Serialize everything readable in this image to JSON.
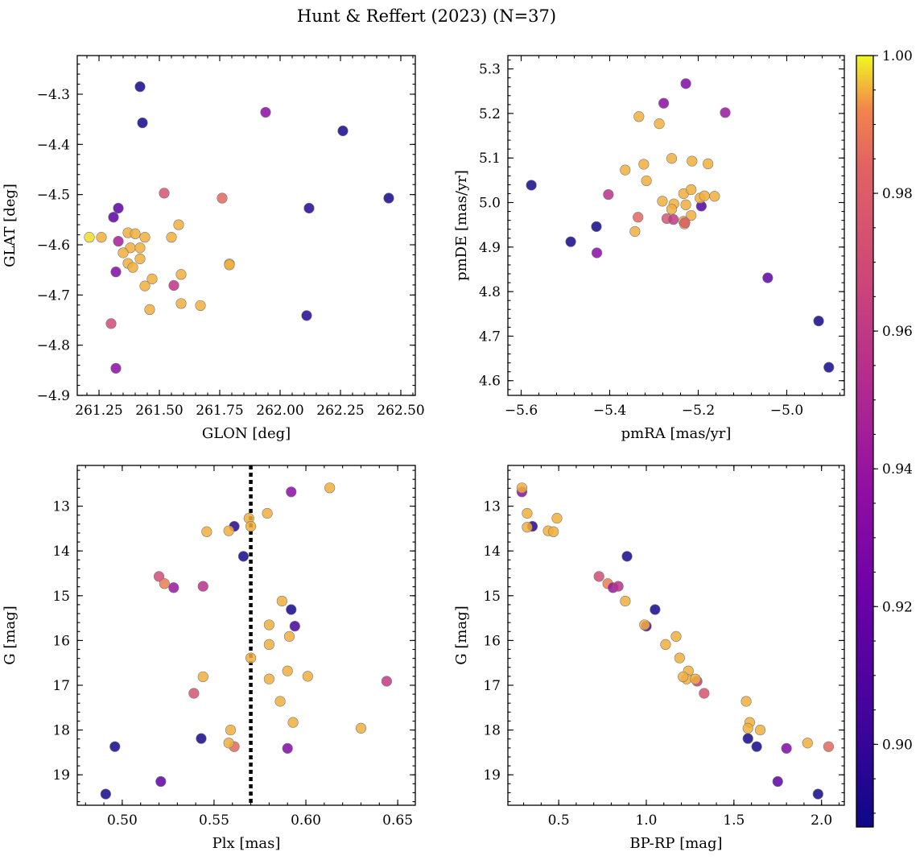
{
  "figure_title": "Hunt & Reffert (2023) (N=37)",
  "colorbar": {
    "ticks": [
      "1.00",
      "0.98",
      "0.96",
      "0.94",
      "0.92",
      "0.90"
    ],
    "range": [
      0.888,
      1.0
    ],
    "colormap": "plasma"
  },
  "chart_data": [
    {
      "type": "scatter",
      "id": "panel-glon-glat",
      "xlabel": "GLON [deg]",
      "ylabel": "GLAT [deg]",
      "xlim": [
        261.16,
        262.56
      ],
      "ylim": [
        -4.9,
        -4.223
      ],
      "y_inverted": false,
      "xticks": [
        261.25,
        261.5,
        261.75,
        262.0,
        262.25,
        262.5
      ],
      "xtick_labels": [
        "261.25",
        "261.50",
        "261.75",
        "262.00",
        "262.25",
        "262.50"
      ],
      "yticks": [
        -4.3,
        -4.4,
        -4.5,
        -4.6,
        -4.7,
        -4.8,
        -4.9
      ],
      "ytick_labels": [
        "−4.3",
        "−4.4",
        "−4.5",
        "−4.6",
        "−4.7",
        "−4.8",
        "−4.9"
      ],
      "points": [
        [
          261.42,
          -4.285,
          0.89
        ],
        [
          261.43,
          -4.357,
          0.89
        ],
        [
          262.26,
          -4.373,
          0.89
        ],
        [
          262.45,
          -4.507,
          0.89
        ],
        [
          262.12,
          -4.527,
          0.895
        ],
        [
          262.11,
          -4.741,
          0.895
        ],
        [
          261.94,
          -4.336,
          0.935
        ],
        [
          261.52,
          -4.497,
          0.975
        ],
        [
          261.76,
          -4.507,
          0.985
        ],
        [
          261.33,
          -4.527,
          0.915
        ],
        [
          261.31,
          -4.545,
          0.915
        ],
        [
          261.33,
          -4.593,
          0.945
        ],
        [
          261.32,
          -4.654,
          0.93
        ],
        [
          261.3,
          -4.757,
          0.97
        ],
        [
          261.32,
          -4.846,
          0.935
        ],
        [
          261.26,
          -4.585,
          0.995
        ],
        [
          261.37,
          -4.576,
          0.995
        ],
        [
          261.4,
          -4.578,
          0.995
        ],
        [
          261.38,
          -4.606,
          0.995
        ],
        [
          261.42,
          -4.606,
          0.995
        ],
        [
          261.35,
          -4.616,
          0.995
        ],
        [
          261.44,
          -4.585,
          0.995
        ],
        [
          261.42,
          -4.628,
          0.995
        ],
        [
          261.37,
          -4.637,
          0.995
        ],
        [
          261.39,
          -4.645,
          0.995
        ],
        [
          261.44,
          -4.682,
          0.995
        ],
        [
          261.47,
          -4.668,
          0.995
        ],
        [
          261.46,
          -4.729,
          0.995
        ],
        [
          261.55,
          -4.585,
          0.995
        ],
        [
          261.58,
          -4.56,
          0.995
        ],
        [
          261.59,
          -4.659,
          0.995
        ],
        [
          261.59,
          -4.717,
          0.995
        ],
        [
          261.67,
          -4.721,
          0.995
        ],
        [
          261.79,
          -4.638,
          0.995
        ],
        [
          261.79,
          -4.64,
          0.995
        ],
        [
          261.56,
          -4.681,
          0.958
        ],
        [
          261.21,
          -4.585,
          0.998
        ]
      ]
    },
    {
      "type": "scatter",
      "id": "panel-pm",
      "xlabel": "pmRA [mas/yr]",
      "ylabel": "pmDE [mas/yr]",
      "xlim": [
        -5.63,
        -4.87
      ],
      "ylim": [
        4.567,
        5.33
      ],
      "y_inverted": false,
      "xticks": [
        -5.6,
        -5.4,
        -5.2,
        -5.0
      ],
      "xtick_labels": [
        "−5.6",
        "−5.4",
        "−5.2",
        "−5.0"
      ],
      "yticks": [
        4.6,
        4.7,
        4.8,
        4.9,
        5.0,
        5.1,
        5.2,
        5.3
      ],
      "ytick_labels": [
        "4.6",
        "4.7",
        "4.8",
        "4.9",
        "5.0",
        "5.1",
        "5.2",
        "5.3"
      ],
      "points": [
        [
          -5.577,
          5.039,
          0.89
        ],
        [
          -5.488,
          4.912,
          0.89
        ],
        [
          -5.43,
          4.946,
          0.89
        ],
        [
          -4.928,
          4.734,
          0.89
        ],
        [
          -4.905,
          4.63,
          0.89
        ],
        [
          -5.228,
          5.267,
          0.93
        ],
        [
          -5.278,
          5.223,
          0.935
        ],
        [
          -5.139,
          5.202,
          0.94
        ],
        [
          -5.403,
          5.018,
          0.955
        ],
        [
          -5.429,
          4.887,
          0.935
        ],
        [
          -5.043,
          4.831,
          0.915
        ],
        [
          -5.193,
          4.992,
          0.91
        ],
        [
          -5.334,
          5.193,
          0.995
        ],
        [
          -5.288,
          5.177,
          0.995
        ],
        [
          -5.365,
          5.073,
          0.995
        ],
        [
          -5.323,
          5.086,
          0.995
        ],
        [
          -5.317,
          5.049,
          0.995
        ],
        [
          -5.26,
          5.099,
          0.995
        ],
        [
          -5.214,
          5.093,
          0.995
        ],
        [
          -5.178,
          5.087,
          0.995
        ],
        [
          -5.281,
          5.003,
          0.995
        ],
        [
          -5.233,
          5.02,
          0.995
        ],
        [
          -5.216,
          5.029,
          0.995
        ],
        [
          -5.196,
          5.01,
          0.995
        ],
        [
          -5.186,
          5.015,
          0.995
        ],
        [
          -5.163,
          5.014,
          0.995
        ],
        [
          -5.255,
          4.997,
          0.995
        ],
        [
          -5.228,
          4.995,
          0.995
        ],
        [
          -5.26,
          4.985,
          0.995
        ],
        [
          -5.216,
          4.971,
          0.995
        ],
        [
          -5.233,
          4.958,
          0.995
        ],
        [
          -5.231,
          4.952,
          0.995
        ],
        [
          -5.271,
          4.964,
          0.975
        ],
        [
          -5.256,
          4.962,
          0.96
        ],
        [
          -5.336,
          4.967,
          0.985
        ],
        [
          -5.343,
          4.935,
          0.995
        ],
        [
          -5.23,
          4.955,
          0.98
        ]
      ]
    },
    {
      "type": "scatter",
      "id": "panel-plx-g",
      "xlabel": "Plx [mas]",
      "ylabel": "G [mag]",
      "xlim": [
        0.4755,
        0.6596
      ],
      "ylim": [
        19.68,
        12.09
      ],
      "y_inverted": true,
      "reference_line_x": 0.57,
      "xticks": [
        0.5,
        0.55,
        0.6,
        0.65
      ],
      "xtick_labels": [
        "0.50",
        "0.55",
        "0.60",
        "0.65"
      ],
      "yticks": [
        13,
        14,
        15,
        16,
        17,
        18,
        19
      ],
      "ytick_labels": [
        "13",
        "14",
        "15",
        "16",
        "17",
        "18",
        "19"
      ],
      "points": [
        [
          0.491,
          19.43,
          0.89
        ],
        [
          0.496,
          18.37,
          0.89
        ],
        [
          0.543,
          18.19,
          0.89
        ],
        [
          0.566,
          14.12,
          0.89
        ],
        [
          0.561,
          13.45,
          0.895
        ],
        [
          0.592,
          15.31,
          0.89
        ],
        [
          0.594,
          15.68,
          0.905
        ],
        [
          0.521,
          19.15,
          0.915
        ],
        [
          0.59,
          18.41,
          0.93
        ],
        [
          0.592,
          12.68,
          0.935
        ],
        [
          0.528,
          14.82,
          0.94
        ],
        [
          0.544,
          14.79,
          0.955
        ],
        [
          0.644,
          16.91,
          0.96
        ],
        [
          0.52,
          14.57,
          0.97
        ],
        [
          0.539,
          17.18,
          0.975
        ],
        [
          0.561,
          18.37,
          0.985
        ],
        [
          0.613,
          12.59,
          0.995
        ],
        [
          0.579,
          13.16,
          0.995
        ],
        [
          0.569,
          13.27,
          0.995
        ],
        [
          0.57,
          13.45,
          0.995
        ],
        [
          0.546,
          13.57,
          0.995
        ],
        [
          0.558,
          13.55,
          0.995
        ],
        [
          0.523,
          14.73,
          0.99
        ],
        [
          0.587,
          15.12,
          0.995
        ],
        [
          0.58,
          15.65,
          0.995
        ],
        [
          0.58,
          16.09,
          0.995
        ],
        [
          0.591,
          15.91,
          0.995
        ],
        [
          0.57,
          16.39,
          0.995
        ],
        [
          0.58,
          16.86,
          0.995
        ],
        [
          0.59,
          16.68,
          0.995
        ],
        [
          0.601,
          16.8,
          0.995
        ],
        [
          0.544,
          16.81,
          0.995
        ],
        [
          0.586,
          17.36,
          0.995
        ],
        [
          0.593,
          17.83,
          0.995
        ],
        [
          0.559,
          18.0,
          0.995
        ],
        [
          0.558,
          18.29,
          0.995
        ],
        [
          0.63,
          17.96,
          0.995
        ]
      ]
    },
    {
      "type": "scatter",
      "id": "panel-cmd",
      "xlabel": "BP-RP [mag]",
      "ylabel": "G [mag]",
      "xlim": [
        0.21,
        2.13
      ],
      "ylim": [
        19.68,
        12.09
      ],
      "y_inverted": true,
      "xticks": [
        0.5,
        1.0,
        1.5,
        2.0
      ],
      "xtick_labels": [
        "0.5",
        "1.0",
        "1.5",
        "2.0"
      ],
      "yticks": [
        13,
        14,
        15,
        16,
        17,
        18,
        19
      ],
      "ytick_labels": [
        "13",
        "14",
        "15",
        "16",
        "17",
        "18",
        "19"
      ],
      "points": [
        [
          0.29,
          12.68,
          0.935
        ],
        [
          0.29,
          12.59,
          0.995
        ],
        [
          0.32,
          13.16,
          0.995
        ],
        [
          0.35,
          13.45,
          0.895
        ],
        [
          0.32,
          13.47,
          0.995
        ],
        [
          0.49,
          13.27,
          0.995
        ],
        [
          0.44,
          13.55,
          0.995
        ],
        [
          0.47,
          13.57,
          0.995
        ],
        [
          0.89,
          14.12,
          0.89
        ],
        [
          0.73,
          14.57,
          0.97
        ],
        [
          0.78,
          14.73,
          0.99
        ],
        [
          0.81,
          14.82,
          0.94
        ],
        [
          0.84,
          14.79,
          0.955
        ],
        [
          0.88,
          15.12,
          0.995
        ],
        [
          1.05,
          15.31,
          0.89
        ],
        [
          1.0,
          15.68,
          0.905
        ],
        [
          0.99,
          15.65,
          0.995
        ],
        [
          1.17,
          15.91,
          0.995
        ],
        [
          1.11,
          16.09,
          0.995
        ],
        [
          1.19,
          16.39,
          0.995
        ],
        [
          1.29,
          16.91,
          0.96
        ],
        [
          1.24,
          16.68,
          0.995
        ],
        [
          1.23,
          16.86,
          0.995
        ],
        [
          1.21,
          16.81,
          0.995
        ],
        [
          1.28,
          16.86,
          0.995
        ],
        [
          1.33,
          17.18,
          0.975
        ],
        [
          1.57,
          17.36,
          0.995
        ],
        [
          1.59,
          17.83,
          0.995
        ],
        [
          1.58,
          17.96,
          0.995
        ],
        [
          1.65,
          18.0,
          0.995
        ],
        [
          1.58,
          18.19,
          0.89
        ],
        [
          1.63,
          18.37,
          0.89
        ],
        [
          1.8,
          18.41,
          0.93
        ],
        [
          1.92,
          18.29,
          0.995
        ],
        [
          2.04,
          18.37,
          0.985
        ],
        [
          1.75,
          19.15,
          0.915
        ],
        [
          1.98,
          19.43,
          0.89
        ]
      ]
    }
  ]
}
